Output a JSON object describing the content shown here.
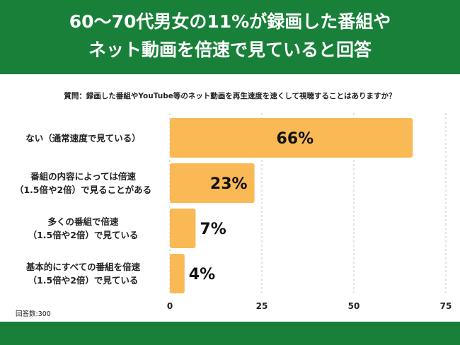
{
  "header": {
    "title_line1": "60〜70代男女の11%が録画した番組や",
    "title_line2": "ネット動画を倍速で見ていると回答"
  },
  "question": "質問：録画した番組やYouTube等のネット動画を再生速度を速くして視聴することはありますか？",
  "note": "回答数:300",
  "colors": {
    "brand_green": "#188038",
    "bar": "#F9B955",
    "grid": "#c8c8c8"
  },
  "chart_data": {
    "type": "bar",
    "orientation": "horizontal",
    "categories": [
      [
        "ない（通常速度で見ている）"
      ],
      [
        "番組の内容によっては倍速",
        "（1.5倍や2倍）で見ることがある"
      ],
      [
        "多くの番組で倍速",
        "（1.5倍や2倍）で見ている"
      ],
      [
        "基本的にすべての番組を倍速",
        "（1.5倍や2倍）で見ている"
      ]
    ],
    "values": [
      66,
      23,
      7,
      4
    ],
    "data_labels": [
      "66%",
      "23%",
      "7%",
      "4%"
    ],
    "xlim": [
      0,
      75
    ],
    "xticks": [
      "0",
      "25",
      "50",
      "75"
    ],
    "grid": true
  }
}
